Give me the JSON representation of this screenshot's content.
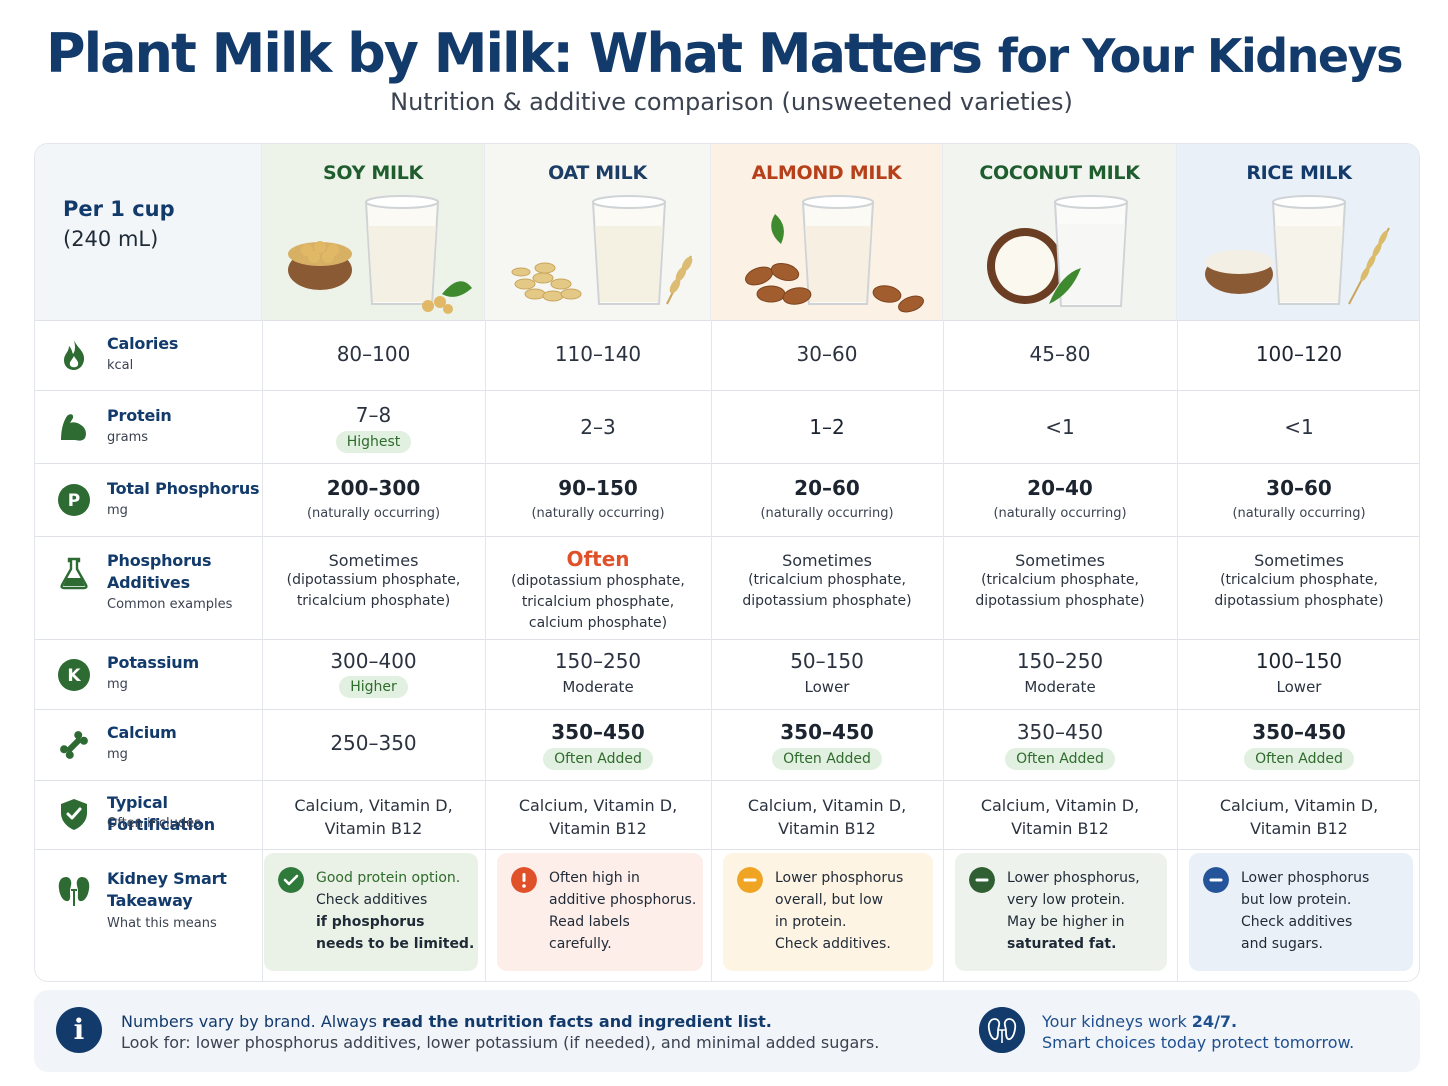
{
  "title": {
    "main": "Plant Milk by Milk: What Matters",
    "tail": "for Your Kidneys"
  },
  "subtitle": "Nutrition & additive comparison (unsweetened varieties)",
  "serving": {
    "line1": "Per 1 cup",
    "line2": "(240 mL)"
  },
  "milks": [
    {
      "name": "SOY MILK",
      "color": "#1f5c2e",
      "bg": "#eef3ea"
    },
    {
      "name": "OAT MILK",
      "color": "#1c3d66",
      "bg": "#f6f6f3"
    },
    {
      "name": "ALMOND MILK",
      "color": "#b5401a",
      "bg": "#fbf1e4"
    },
    {
      "name": "COCONUT MILK",
      "color": "#1f5c2e",
      "bg": "#f1f4ef"
    },
    {
      "name": "RICE MILK",
      "color": "#123a6b",
      "bg": "#eaf0f8"
    }
  ],
  "rows": {
    "calories": {
      "label": "Calories",
      "unit": "kcal",
      "values": [
        "80–100",
        "110–140",
        "30–60",
        "45–80",
        "100–120"
      ]
    },
    "protein": {
      "label": "Protein",
      "unit": "grams",
      "values": [
        "7–8",
        "2–3",
        "1–2",
        "<1",
        "<1"
      ],
      "soy_badge": "Highest"
    },
    "phosphorus": {
      "label": "Total Phosphorus",
      "unit": "mg",
      "values": [
        "200–300",
        "90–150",
        "20–60",
        "20–40",
        "30–60"
      ],
      "note": "(naturally occurring)"
    },
    "additives": {
      "label1": "Phosphorus",
      "label2": "Additives",
      "unit": "Common examples",
      "freq": [
        "Sometimes",
        "Often",
        "Sometimes",
        "Sometimes",
        "Sometimes"
      ],
      "examples": [
        [
          "(dipotassium phosphate,",
          "tricalcium phosphate)"
        ],
        [
          "(dipotassium phosphate,",
          "tricalcium phosphate,",
          "calcium phosphate)"
        ],
        [
          "(tricalcium phosphate,",
          "dipotassium phosphate)"
        ],
        [
          "(tricalcium phosphate,",
          "dipotassium phosphate)"
        ],
        [
          "(tricalcium phosphate,",
          "dipotassium phosphate)"
        ]
      ]
    },
    "potassium": {
      "label": "Potassium",
      "unit": "mg",
      "values": [
        "300–400",
        "150–250",
        "50–150",
        "150–250",
        "100–150"
      ],
      "levels": [
        "Higher",
        "Moderate",
        "Lower",
        "Moderate",
        "Lower"
      ]
    },
    "calcium": {
      "label": "Calcium",
      "unit": "mg",
      "values": [
        "250–350",
        "350–450",
        "350–450",
        "350–450",
        "350–450"
      ],
      "badge": "Often Added"
    },
    "fortification": {
      "label": "Typical Fortification",
      "unit": "Often includes",
      "line1": "Calcium, Vitamin D,",
      "line2": "Vitamin B12"
    },
    "takeaway": {
      "label1": "Kidney Smart",
      "label2": "Takeaway",
      "unit": "What this means",
      "items": [
        {
          "lines": [
            "Good protein option.",
            "Check additives",
            "if phosphorus",
            "needs to be limited."
          ],
          "bg": "#eaf1e6",
          "icon_color": "#2f7a3a",
          "icon": "check-icon"
        },
        {
          "lines": [
            "Often high in",
            "additive phosphorus.",
            "Read labels",
            "carefully."
          ],
          "bg": "#fdeeea",
          "icon_color": "#e0512a",
          "icon": "alert-icon"
        },
        {
          "lines": [
            "Lower phosphorus",
            "overall, but low",
            "in protein.",
            "Check additives."
          ],
          "bg": "#fdf4e3",
          "icon_color": "#f0a424",
          "icon": "minus-icon"
        },
        {
          "lines": [
            "Lower phosphorus,",
            "very low protein.",
            "May be higher in",
            "saturated fat."
          ],
          "bg": "#eef2ec",
          "icon_color": "#2f5f33",
          "icon": "minus-icon"
        },
        {
          "lines": [
            "Lower phosphorus",
            "but low protein.",
            "Check additives",
            "and sugars."
          ],
          "bg": "#eaf0f7",
          "icon_color": "#24549a",
          "icon": "minus-icon"
        }
      ]
    }
  },
  "footer": {
    "line1a": "Numbers vary by brand. Always ",
    "line1b": "read the nutrition facts and ingredient list.",
    "line2": "Look for: lower phosphorus additives, lower potassium (if needed), and minimal added sugars.",
    "right1a": "Your kidneys work ",
    "right1b": "24/7.",
    "right2": "Smart choices today protect tomorrow."
  },
  "colors": {
    "navy": "#123a6b",
    "green": "#2f6b2c",
    "orange": "#e0512a"
  }
}
